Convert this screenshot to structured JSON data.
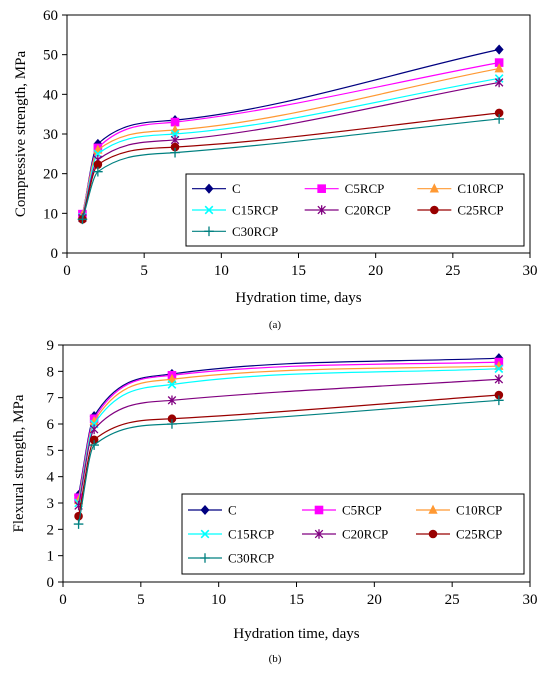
{
  "chart_data": [
    {
      "type": "line",
      "caption": "(a)",
      "xlabel": "Hydration time, days",
      "ylabel": "Compressive strength, MPa",
      "xlim": [
        0,
        30
      ],
      "ylim": [
        0,
        60
      ],
      "x_ticks": [
        "0",
        "5",
        "10",
        "15",
        "20",
        "25",
        "30"
      ],
      "y_ticks": [
        "0",
        "10",
        "20",
        "30",
        "40",
        "50",
        "60"
      ],
      "grid": false,
      "legend_position": "bottom-right",
      "x": [
        1,
        2,
        7,
        28
      ],
      "series": [
        {
          "name": "C",
          "values": [
            9.5,
            27.5,
            33.5,
            51.3
          ],
          "color": "#000080",
          "marker": "diamond"
        },
        {
          "name": "C5RCP",
          "values": [
            9.8,
            26.5,
            33.0,
            48.0
          ],
          "color": "#ff00ff",
          "marker": "square"
        },
        {
          "name": "C10RCP",
          "values": [
            9.5,
            26.0,
            31.0,
            46.5
          ],
          "color": "#ff9933",
          "marker": "triangle"
        },
        {
          "name": "C15RCP",
          "values": [
            9.0,
            25.0,
            30.0,
            44.0
          ],
          "color": "#00ffff",
          "marker": "x"
        },
        {
          "name": "C20RCP",
          "values": [
            8.8,
            23.5,
            28.5,
            43.0
          ],
          "color": "#800080",
          "marker": "star"
        },
        {
          "name": "C25RCP",
          "values": [
            8.5,
            22.3,
            26.7,
            35.3
          ],
          "color": "#990000",
          "marker": "circle"
        },
        {
          "name": "C30RCP",
          "values": [
            8.5,
            20.5,
            25.3,
            33.8
          ],
          "color": "#008080",
          "marker": "plus"
        }
      ]
    },
    {
      "type": "line",
      "caption": "(b)",
      "xlabel": "Hydration time, days",
      "ylabel": "Flexural strength, MPa",
      "xlim": [
        0,
        30
      ],
      "ylim": [
        0,
        9
      ],
      "x_ticks": [
        "0",
        "5",
        "10",
        "15",
        "20",
        "25",
        "30"
      ],
      "y_ticks": [
        "0",
        "1",
        "2",
        "3",
        "4",
        "5",
        "6",
        "7",
        "8",
        "9"
      ],
      "grid": false,
      "legend_position": "bottom-right",
      "x": [
        1,
        2,
        7,
        28
      ],
      "series": [
        {
          "name": "C",
          "values": [
            3.3,
            6.3,
            7.9,
            8.5
          ],
          "color": "#000080",
          "marker": "diamond"
        },
        {
          "name": "C5RCP",
          "values": [
            3.2,
            6.2,
            7.85,
            8.35
          ],
          "color": "#ff00ff",
          "marker": "square"
        },
        {
          "name": "C10RCP",
          "values": [
            3.1,
            6.1,
            7.7,
            8.2
          ],
          "color": "#ff9933",
          "marker": "triangle"
        },
        {
          "name": "C15RCP",
          "values": [
            3.0,
            6.0,
            7.5,
            8.1
          ],
          "color": "#00ffff",
          "marker": "x"
        },
        {
          "name": "C20RCP",
          "values": [
            2.9,
            5.8,
            6.9,
            7.7
          ],
          "color": "#800080",
          "marker": "star"
        },
        {
          "name": "C25RCP",
          "values": [
            2.5,
            5.4,
            6.2,
            7.1
          ],
          "color": "#990000",
          "marker": "circle"
        },
        {
          "name": "C30RCP",
          "values": [
            2.2,
            5.2,
            6.0,
            6.9
          ],
          "color": "#008080",
          "marker": "plus"
        }
      ]
    }
  ]
}
